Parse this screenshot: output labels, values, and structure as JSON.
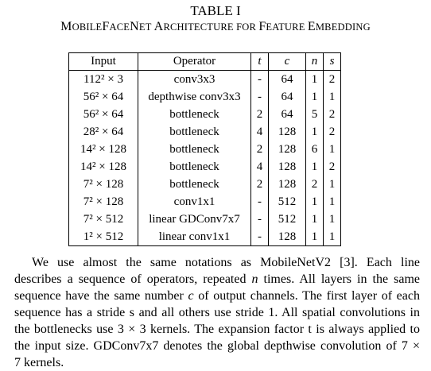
{
  "table": {
    "label": "TABLE I",
    "caption_parts": [
      {
        "text": "M",
        "small": false
      },
      {
        "text": "OBILE",
        "small": true
      },
      {
        "text": "F",
        "small": false
      },
      {
        "text": "ACE",
        "small": true
      },
      {
        "text": "N",
        "small": false
      },
      {
        "text": "ET ",
        "small": true
      },
      {
        "text": "A",
        "small": false
      },
      {
        "text": "RCHITECTURE FOR ",
        "small": true
      },
      {
        "text": "F",
        "small": false
      },
      {
        "text": "EATURE ",
        "small": true
      },
      {
        "text": "E",
        "small": false
      },
      {
        "text": "MBEDDING",
        "small": true
      }
    ],
    "headers": [
      "Input",
      "Operator",
      "t",
      "c",
      "n",
      "s"
    ],
    "rows": [
      [
        "112² × 3",
        "conv3x3",
        "-",
        "64",
        "1",
        "2"
      ],
      [
        "56² × 64",
        "depthwise conv3x3",
        "-",
        "64",
        "1",
        "1"
      ],
      [
        "56² × 64",
        "bottleneck",
        "2",
        "64",
        "5",
        "2"
      ],
      [
        "28² × 64",
        "bottleneck",
        "4",
        "128",
        "1",
        "2"
      ],
      [
        "14² × 128",
        "bottleneck",
        "2",
        "128",
        "6",
        "1"
      ],
      [
        "14² × 128",
        "bottleneck",
        "4",
        "128",
        "1",
        "2"
      ],
      [
        "7² × 128",
        "bottleneck",
        "2",
        "128",
        "2",
        "1"
      ],
      [
        "7² × 128",
        "conv1x1",
        "-",
        "512",
        "1",
        "1"
      ],
      [
        "7² × 512",
        "linear GDConv7x7",
        "-",
        "512",
        "1",
        "1"
      ],
      [
        "1² × 512",
        "linear conv1x1",
        "-",
        "128",
        "1",
        "1"
      ]
    ]
  },
  "paragraph": {
    "lines": [
      {
        "indent": true,
        "parts": [
          {
            "t": "We use almost the same notations as MobileNetV2 [3]. Each line",
            "i": false
          }
        ]
      },
      {
        "indent": false,
        "parts": [
          {
            "t": "describes a sequence of operators, repeated ",
            "i": false
          },
          {
            "t": "n",
            "i": true
          },
          {
            "t": " times. All layers in the same",
            "i": false
          }
        ]
      },
      {
        "indent": false,
        "parts": [
          {
            "t": "sequence have the same number ",
            "i": false
          },
          {
            "t": "c",
            "i": true
          },
          {
            "t": " of output channels. The first layer of each",
            "i": false
          }
        ]
      },
      {
        "indent": false,
        "parts": [
          {
            "t": "sequence has a stride s and all others use stride 1. All spatial convolutions in",
            "i": false
          }
        ]
      },
      {
        "indent": false,
        "parts": [
          {
            "t": "the bottlenecks use 3 × 3 kernels. The expansion factor t is always applied to",
            "i": false
          }
        ]
      },
      {
        "indent": false,
        "parts": [
          {
            "t": "the input size. GDConv7x7 denotes the global depthwise convolution of 7 ×",
            "i": false
          }
        ]
      },
      {
        "indent": false,
        "last": true,
        "parts": [
          {
            "t": "7 kernels.",
            "i": false
          }
        ]
      }
    ]
  }
}
